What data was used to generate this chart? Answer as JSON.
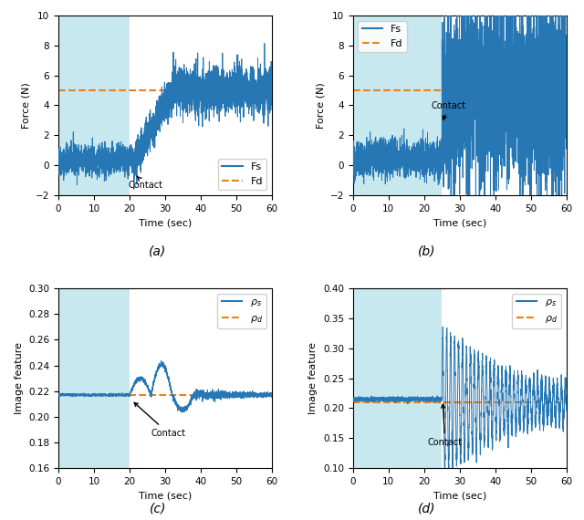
{
  "fig_width": 6.4,
  "fig_height": 5.7,
  "dpi": 100,
  "bg_color": "#ffffff",
  "blue_bg": "#c8e8f0",
  "line_blue": "#2777b4",
  "line_orange": "#e6821e",
  "subplots": [
    {
      "label": "(a)",
      "contact_time": 21,
      "blue_end": 20,
      "ylim": [
        -2,
        10
      ],
      "yticks": [
        -2,
        0,
        2,
        4,
        6,
        8,
        10
      ],
      "xlim": [
        0,
        60
      ],
      "xticks": [
        0,
        10,
        20,
        30,
        40,
        50,
        60
      ],
      "ylabel": "Force (N)",
      "xlabel": "Time (sec)",
      "Fd": 5.0,
      "legend_loc": "lower right",
      "legend_labels": [
        "Fs",
        "Fd"
      ]
    },
    {
      "label": "(b)",
      "contact_time": 25,
      "blue_end": 25,
      "ylim": [
        -2,
        10
      ],
      "yticks": [
        -2,
        0,
        2,
        4,
        6,
        8,
        10
      ],
      "xlim": [
        0,
        60
      ],
      "xticks": [
        0,
        10,
        20,
        30,
        40,
        50,
        60
      ],
      "ylabel": "Force (N)",
      "xlabel": "Time (sec)",
      "Fd": 5.0,
      "legend_loc": "upper left",
      "legend_labels": [
        "Fs",
        "Fd"
      ]
    },
    {
      "label": "(c)",
      "contact_time": 20,
      "blue_end": 20,
      "ylim": [
        0.16,
        0.3
      ],
      "yticks": [
        0.16,
        0.18,
        0.2,
        0.22,
        0.24,
        0.26,
        0.28,
        0.3
      ],
      "xlim": [
        0,
        60
      ],
      "xticks": [
        0,
        10,
        20,
        30,
        40,
        50,
        60
      ],
      "ylabel": "Image feature",
      "xlabel": "Time (sec)",
      "Fd": 0.217,
      "legend_loc": "upper right",
      "legend_labels": [
        "rho_s",
        "rho_d"
      ]
    },
    {
      "label": "(d)",
      "contact_time": 25,
      "blue_end": 25,
      "ylim": [
        0.1,
        0.4
      ],
      "yticks": [
        0.1,
        0.15,
        0.2,
        0.25,
        0.3,
        0.35,
        0.4
      ],
      "xlim": [
        0,
        60
      ],
      "xticks": [
        0,
        10,
        20,
        30,
        40,
        50,
        60
      ],
      "ylabel": "Image feature",
      "xlabel": "Time (sec)",
      "Fd": 0.21,
      "legend_loc": "upper right",
      "legend_labels": [
        "rho_s",
        "rho_d"
      ]
    }
  ]
}
